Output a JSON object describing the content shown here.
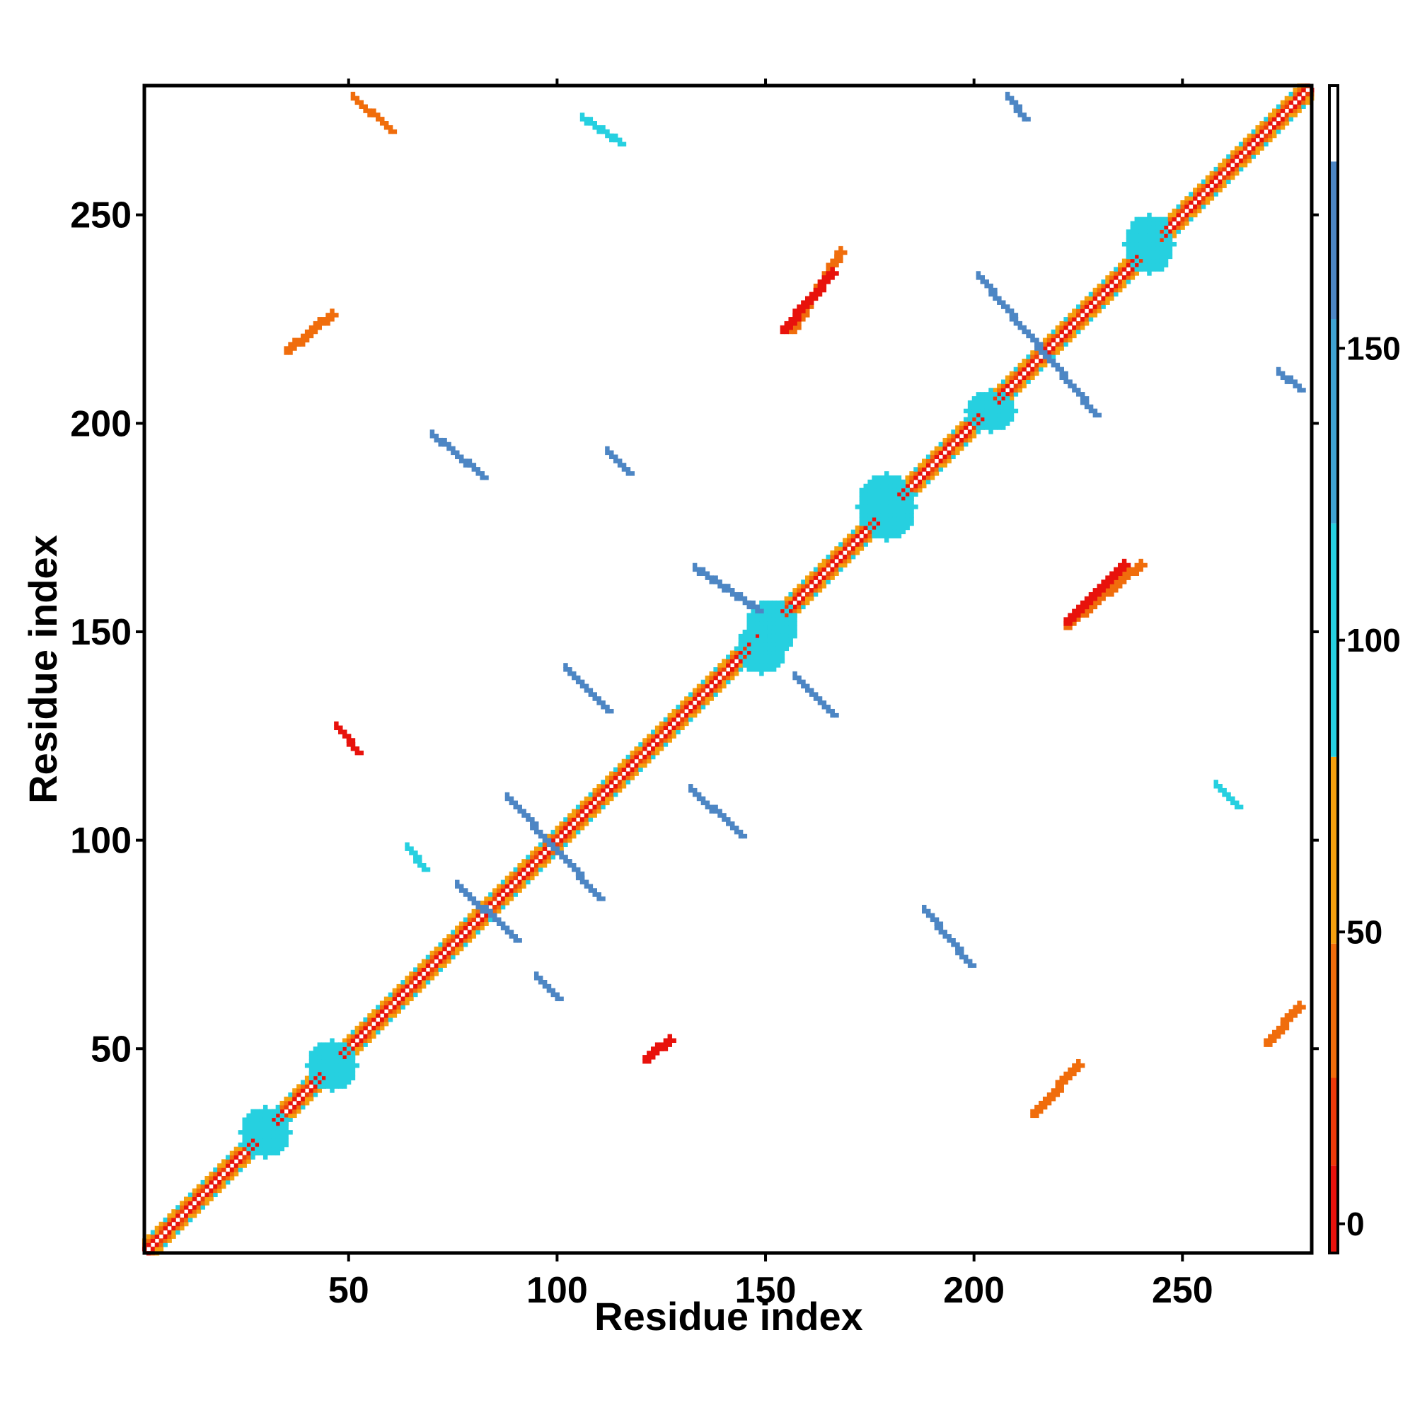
{
  "chart_data": {
    "type": "heatmap",
    "title": "",
    "xlabel": "Residue index",
    "ylabel": "Residue index",
    "xlim": [
      1,
      281
    ],
    "ylim": [
      1,
      281
    ],
    "x_ticks": [
      50,
      100,
      150,
      200,
      250
    ],
    "y_ticks": [
      50,
      100,
      150,
      200,
      250
    ],
    "colorbar": {
      "ticks": [
        0,
        50,
        100,
        150
      ],
      "range": [
        -5,
        195
      ],
      "segments": [
        {
          "from": -5,
          "to": 10,
          "color": "#e8120c"
        },
        {
          "from": 10,
          "to": 25,
          "color": "#ee3a0a"
        },
        {
          "from": 25,
          "to": 48,
          "color": "#f06d0c"
        },
        {
          "from": 48,
          "to": 80,
          "color": "#f4a00f"
        },
        {
          "from": 80,
          "to": 120,
          "color": "#26d0e0"
        },
        {
          "from": 120,
          "to": 155,
          "color": "#3fa2d2"
        },
        {
          "from": 155,
          "to": 182,
          "color": "#4d86c4"
        },
        {
          "from": 182,
          "to": 195,
          "color": "#ffffff"
        }
      ]
    },
    "colors": {
      "red": "#e8120c",
      "orange_red": "#ee3a0a",
      "orange": "#f06d0c",
      "light_orange": "#f4a00f",
      "cyan": "#26d0e0",
      "steel_blue": "#4d86c4"
    },
    "diagonal": {
      "from": 1,
      "to": 281
    },
    "features": [
      {
        "x": [
          40,
          52
        ],
        "y": [
          40,
          52
        ],
        "color": "cyan",
        "kind": "blob"
      },
      {
        "x": [
          24,
          36
        ],
        "y": [
          24,
          36
        ],
        "color": "cyan",
        "kind": "blob"
      },
      {
        "x": [
          145,
          158
        ],
        "y": [
          145,
          158
        ],
        "color": "cyan",
        "kind": "blob"
      },
      {
        "x": [
          143,
          155
        ],
        "y": [
          140,
          152
        ],
        "color": "cyan",
        "kind": "blob"
      },
      {
        "x": [
          172,
          186
        ],
        "y": [
          172,
          188
        ],
        "color": "cyan",
        "kind": "blob"
      },
      {
        "x": [
          198,
          210
        ],
        "y": [
          198,
          208
        ],
        "color": "cyan",
        "kind": "blob"
      },
      {
        "x": [
          236,
          248
        ],
        "y": [
          236,
          250
        ],
        "color": "cyan",
        "kind": "blob"
      },
      {
        "x": [
          76,
          90
        ],
        "y": [
          89,
          76
        ],
        "color": "steel_blue",
        "kind": "strand"
      },
      {
        "x": [
          88,
          110
        ],
        "y": [
          110,
          86
        ],
        "color": "steel_blue",
        "kind": "strand"
      },
      {
        "x": [
          102,
          112
        ],
        "y": [
          141,
          131
        ],
        "color": "steel_blue",
        "kind": "strand"
      },
      {
        "x": [
          132,
          144
        ],
        "y": [
          112,
          101
        ],
        "color": "steel_blue",
        "kind": "strand"
      },
      {
        "x": [
          133,
          148
        ],
        "y": [
          165,
          155
        ],
        "color": "steel_blue",
        "kind": "strand"
      },
      {
        "x": [
          157,
          166
        ],
        "y": [
          139,
          130
        ],
        "color": "steel_blue",
        "kind": "strand"
      },
      {
        "x": [
          201,
          229
        ],
        "y": [
          235,
          202
        ],
        "color": "steel_blue",
        "kind": "strand"
      },
      {
        "x": [
          188,
          199
        ],
        "y": [
          83,
          70
        ],
        "color": "steel_blue",
        "kind": "strand"
      },
      {
        "x": [
          70,
          82
        ],
        "y": [
          197,
          187
        ],
        "color": "steel_blue",
        "kind": "strand"
      },
      {
        "x": [
          208,
          212
        ],
        "y": [
          278,
          273
        ],
        "color": "steel_blue",
        "kind": "strand"
      },
      {
        "x": [
          273,
          278
        ],
        "y": [
          212,
          208
        ],
        "color": "steel_blue",
        "kind": "strand"
      },
      {
        "x": [
          112,
          117
        ],
        "y": [
          193,
          188
        ],
        "color": "steel_blue",
        "kind": "strand"
      },
      {
        "x": [
          95,
          100
        ],
        "y": [
          67,
          62
        ],
        "color": "steel_blue",
        "kind": "strand"
      },
      {
        "x": [
          64,
          68
        ],
        "y": [
          98,
          93
        ],
        "color": "cyan",
        "kind": "strand"
      },
      {
        "x": [
          156,
          168
        ],
        "y": [
          222,
          241
        ],
        "color": "orange",
        "kind": "strand"
      },
      {
        "x": [
          222,
          240
        ],
        "y": [
          151,
          166
        ],
        "color": "orange",
        "kind": "strand"
      },
      {
        "x": [
          154,
          166
        ],
        "y": [
          222,
          236
        ],
        "color": "red",
        "kind": "strand"
      },
      {
        "x": [
          222,
          236
        ],
        "y": [
          152,
          166
        ],
        "color": "red",
        "kind": "strand"
      },
      {
        "x": [
          51,
          60
        ],
        "y": [
          278,
          270
        ],
        "color": "orange",
        "kind": "strand"
      },
      {
        "x": [
          270,
          278
        ],
        "y": [
          51,
          60
        ],
        "color": "orange",
        "kind": "strand"
      },
      {
        "x": [
          47,
          52
        ],
        "y": [
          127,
          121
        ],
        "color": "red",
        "kind": "strand"
      },
      {
        "x": [
          121,
          127
        ],
        "y": [
          47,
          52
        ],
        "color": "red",
        "kind": "strand"
      },
      {
        "x": [
          35,
          46
        ],
        "y": [
          217,
          226
        ],
        "color": "orange",
        "kind": "strand"
      },
      {
        "x": [
          214,
          225
        ],
        "y": [
          34,
          46
        ],
        "color": "orange",
        "kind": "strand"
      },
      {
        "x": [
          106,
          115
        ],
        "y": [
          273,
          267
        ],
        "color": "cyan",
        "kind": "strand"
      },
      {
        "x": [
          258,
          263
        ],
        "y": [
          113,
          108
        ],
        "color": "cyan",
        "kind": "strand"
      }
    ]
  }
}
